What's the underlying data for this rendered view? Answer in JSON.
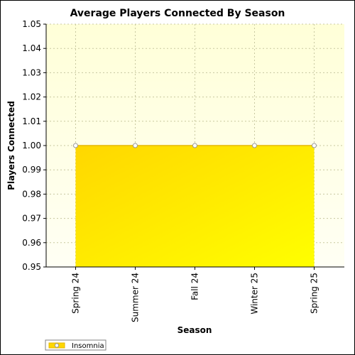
{
  "chart_data": {
    "type": "area",
    "title": "Average Players Connected By Season",
    "xlabel": "Season",
    "ylabel": "Players Connected",
    "categories": [
      "Spring 24",
      "Summer 24",
      "Fall 24",
      "Winter 25",
      "Spring 25"
    ],
    "series": [
      {
        "name": "Insomnia",
        "values": [
          1.0,
          1.0,
          1.0,
          1.0,
          1.0
        ]
      }
    ],
    "ylim": [
      0.95,
      1.05
    ],
    "yticks": [
      "0.95",
      "0.96",
      "0.97",
      "0.98",
      "0.99",
      "1.00",
      "1.01",
      "1.02",
      "1.03",
      "1.04",
      "1.05"
    ],
    "grid": true,
    "legend_position": "bottom-left",
    "colors": {
      "fill_start": "#ffd700",
      "fill_end": "#ffff00",
      "line": "#e6b800",
      "plot_background_top": "#ffffd8",
      "plot_background_bottom": "#fffff4",
      "grid": "#c8c8a0"
    }
  }
}
